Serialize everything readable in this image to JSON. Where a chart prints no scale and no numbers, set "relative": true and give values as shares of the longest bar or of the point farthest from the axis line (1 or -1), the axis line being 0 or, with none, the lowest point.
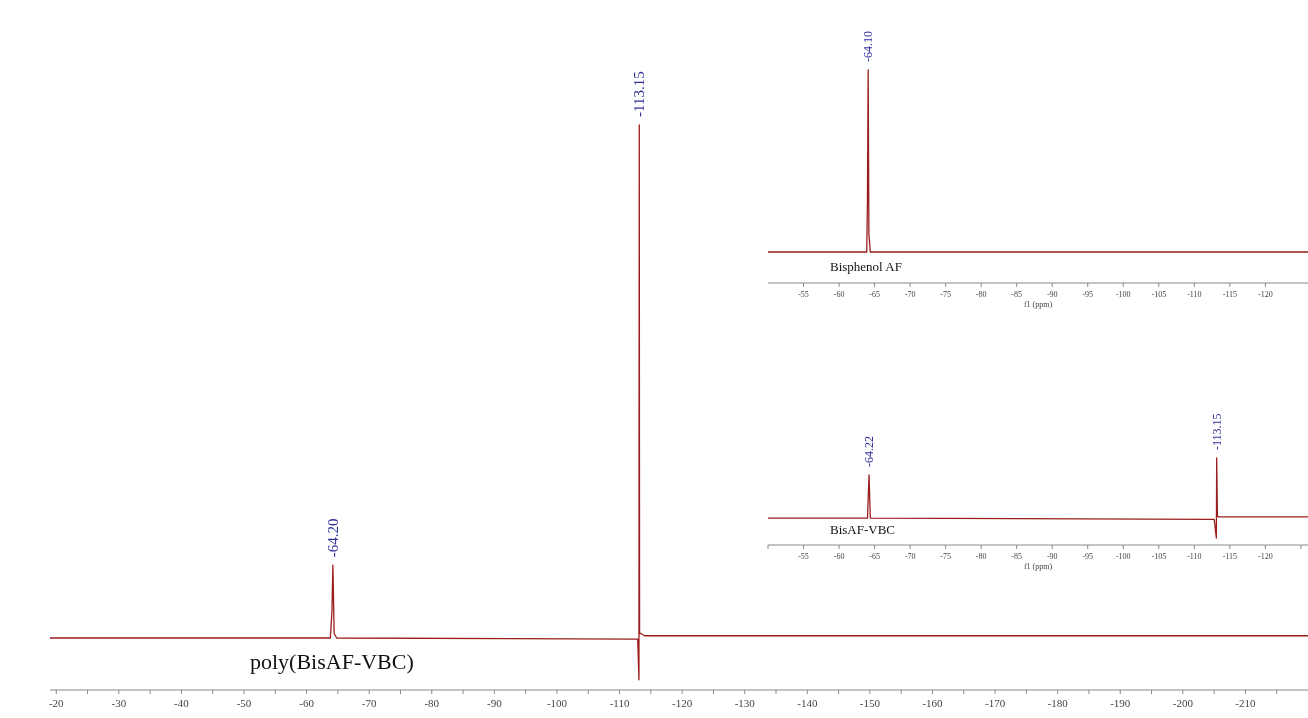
{
  "chart_data": [
    {
      "type": "line",
      "relative": true,
      "title": "poly(BisAF-VBC)",
      "series": [
        {
          "color": "#9b1c1c",
          "x": [
            -19,
            -63.8,
            -64.05,
            -64.2,
            -64.4,
            -64.8,
            -112.9,
            -113.1,
            -113.15,
            -113.2,
            -113.4,
            -114,
            -220
          ],
          "values": [
            0.092,
            0.092,
            0.14,
            0.221,
            0.1,
            0.092,
            0.09,
            0.018,
            1,
            0.1,
            0.1,
            0.096,
            0.096
          ]
        }
      ],
      "annotations": [
        {
          "text": "-64.20",
          "x": -64.2,
          "y": 0.221
        },
        {
          "text": "-113.15",
          "x": -113.15,
          "y": 1
        }
      ],
      "xlim": [
        -19,
        -220
      ],
      "xticks": [
        -20,
        {
          "value": -25,
          "label": null
        },
        -30,
        {
          "value": -35,
          "label": null
        },
        -40,
        {
          "value": -45,
          "label": null
        },
        -50,
        {
          "value": -55,
          "label": null
        },
        -60,
        {
          "value": -65,
          "label": null
        },
        -70,
        {
          "value": -75,
          "label": null
        },
        -80,
        {
          "value": -85,
          "label": null
        },
        -90,
        {
          "value": -95,
          "label": null
        },
        -100,
        {
          "value": -105,
          "label": null
        },
        -110,
        {
          "value": -115,
          "label": null
        },
        -120,
        {
          "value": -125,
          "label": null
        },
        -130,
        {
          "value": -135,
          "label": null
        },
        -140,
        {
          "value": -145,
          "label": null
        },
        -150,
        {
          "value": -155,
          "label": null
        },
        -160,
        {
          "value": -165,
          "label": null
        },
        -170,
        {
          "value": -175,
          "label": null
        },
        -180,
        {
          "value": -185,
          "label": null
        },
        -190,
        {
          "value": -195,
          "label": null
        },
        -200,
        {
          "value": -205,
          "label": null
        },
        -210,
        {
          "value": -215,
          "label": null
        }
      ]
    },
    {
      "type": "line",
      "relative": true,
      "title": "Bisphenol AF",
      "xlabel": "f1 (ppm)",
      "series": [
        {
          "color": "#9b1c1c",
          "x": [
            -50,
            -63.9,
            -64.0,
            -64.1,
            -64.2,
            -64.4,
            -126
          ],
          "values": [
            0,
            0,
            0.3,
            1,
            0.1,
            0,
            0
          ]
        }
      ],
      "annotations": [
        {
          "text": "-64.10",
          "x": -64.1,
          "y": 1
        }
      ],
      "xlim": [
        -50,
        -126
      ],
      "xticks": [
        -55,
        -60,
        -65,
        -70,
        -75,
        -80,
        -85,
        -90,
        -95,
        -100,
        -105,
        -110,
        -115,
        -120
      ]
    },
    {
      "type": "line",
      "relative": true,
      "title": "BisAF-VBC",
      "xlabel": "f1 (ppm)",
      "series": [
        {
          "color": "#9b1c1c",
          "x": [
            -50,
            -64.0,
            -64.22,
            -64.4,
            -112.8,
            -113.1,
            -113.15,
            -113.25,
            -113.5,
            -126
          ],
          "values": [
            0.248,
            0.248,
            0.789,
            0.248,
            0.233,
            0,
            1,
            0.271,
            0.263,
            0.263
          ]
        }
      ],
      "annotations": [
        {
          "text": "-64.22",
          "x": -64.22,
          "y": 0.789
        },
        {
          "text": "-113.15",
          "x": -113.15,
          "y": 1
        }
      ],
      "xlim": [
        -50,
        -126
      ],
      "xticks": [
        {
          "value": -50,
          "label": null
        },
        -55,
        -60,
        -65,
        -70,
        -75,
        -80,
        -85,
        -90,
        -95,
        -100,
        -105,
        -110,
        -115,
        -120,
        {
          "value": -125,
          "label": null
        }
      ]
    }
  ]
}
